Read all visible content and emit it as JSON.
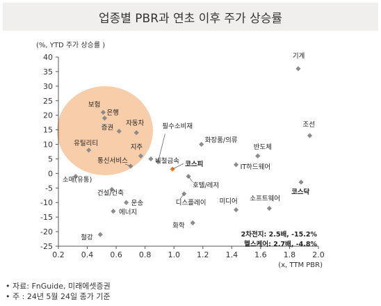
{
  "title": "업종별 PBR과 연초 이후 주가 상승률",
  "notes": [
    "자료: FnGuide, 미래에셋증권",
    "주 : 24년 5월 24일 종가 기준"
  ],
  "chart_data": {
    "type": "scatter",
    "title": "업종별 PBR과 연초 이후 주가 상승률",
    "xlabel": "(x, TTM PBR)",
    "ylabel": "(%, YTD 주가 상승률 )",
    "xlim": [
      0.2,
      2.0
    ],
    "ylim": [
      -25,
      40
    ],
    "xticks": [
      "0.2",
      "0.4",
      "0.6",
      "0.8",
      "1.0",
      "1.2",
      "1.4",
      "1.6",
      "1.8",
      "2.0"
    ],
    "yticks": [
      "-25",
      "-20",
      "-15",
      "-10",
      "-5",
      "0",
      "5",
      "10",
      "15",
      "20",
      "25",
      "30",
      "35",
      "40"
    ],
    "grid": false,
    "colors": {
      "point": "#8c8c8c",
      "kospi": "#f07a1a",
      "highlight": "#f6bc8e"
    },
    "points": [
      {
        "label": "보험",
        "x": 0.51,
        "y": 21
      },
      {
        "label": "은행",
        "x": 0.52,
        "y": 19
      },
      {
        "label": "증권",
        "x": 0.62,
        "y": 14.5
      },
      {
        "label": "자동차",
        "x": 0.74,
        "y": 14
      },
      {
        "label": "유틸리티",
        "x": 0.41,
        "y": 8
      },
      {
        "label": "지주",
        "x": 0.77,
        "y": 6
      },
      {
        "label": "통신서비스",
        "x": 0.7,
        "y": 2.5
      },
      {
        "label": "필수소비재",
        "x": 0.89,
        "y": 4
      },
      {
        "label": "비철금속",
        "x": 0.84,
        "y": 5
      },
      {
        "label": "코스피",
        "x": 0.99,
        "y": 1.5
      },
      {
        "label": "화장품/의류",
        "x": 1.19,
        "y": 10
      },
      {
        "label": "반도체",
        "x": 1.58,
        "y": 6
      },
      {
        "label": "IT하드웨어",
        "x": 1.43,
        "y": 3
      },
      {
        "label": "기계",
        "x": 1.86,
        "y": 36
      },
      {
        "label": "조선",
        "x": 1.94,
        "y": 13
      },
      {
        "label": "코스닥",
        "x": 1.88,
        "y": -3
      },
      {
        "label": "호텔/레저",
        "x": 1.1,
        "y": -1
      },
      {
        "label": "소매(유통)",
        "x": 0.32,
        "y": -1
      },
      {
        "label": "건설/건축",
        "x": 0.57,
        "y": -5.5
      },
      {
        "label": "운송",
        "x": 0.67,
        "y": -10
      },
      {
        "label": "에너지",
        "x": 0.58,
        "y": -13
      },
      {
        "label": "디스플레이",
        "x": 1.07,
        "y": -7
      },
      {
        "label": "미디어",
        "x": 1.43,
        "y": -12.5
      },
      {
        "label": "소프트웨어",
        "x": 1.66,
        "y": -12
      },
      {
        "label": "화학",
        "x": 1.13,
        "y": -17
      },
      {
        "label": "철강",
        "x": 0.49,
        "y": -21
      }
    ],
    "annotations": [
      {
        "text": "2차전지: 2.5배, -15.2%"
      },
      {
        "text": "헬스케어: 2.7배, -4.8%"
      }
    ]
  }
}
